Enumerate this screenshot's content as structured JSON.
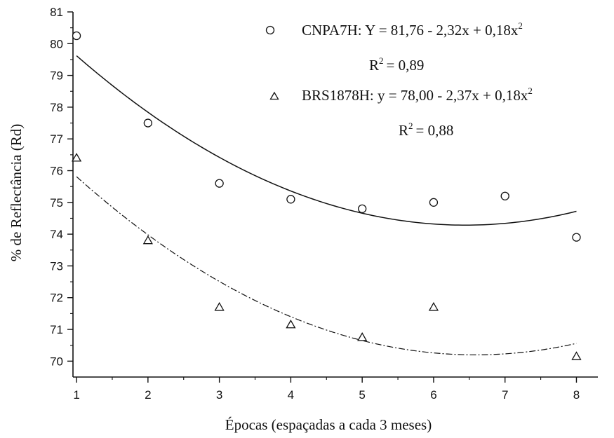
{
  "chart_data": {
    "type": "scatter",
    "xlabel": "Épocas (espaçadas a cada 3 meses)",
    "ylabel": "% de Reflectância (Rd)",
    "xlim": [
      0.95,
      8.3
    ],
    "ylim": [
      69.5,
      81
    ],
    "x_ticks": [
      1,
      2,
      3,
      4,
      5,
      6,
      7,
      8
    ],
    "y_ticks": [
      70,
      71,
      72,
      73,
      74,
      75,
      76,
      77,
      78,
      79,
      80,
      81
    ],
    "grid": false,
    "legend_position": "top-right",
    "series": [
      {
        "name": "CNPA7H",
        "marker": "circle",
        "line_style": "solid",
        "equation": "Y = 81,76 - 2,32x + 0,18x",
        "equation_exponent": "2",
        "r2_label": "R",
        "r2_exponent": "2",
        "r2_value": "= 0,89",
        "coefficients": [
          81.76,
          -2.32,
          0.18
        ],
        "points": [
          [
            1,
            80.25
          ],
          [
            2,
            77.5
          ],
          [
            3,
            75.6
          ],
          [
            4,
            75.1
          ],
          [
            5,
            74.8
          ],
          [
            6,
            75.0
          ],
          [
            7,
            75.2
          ],
          [
            8,
            73.9
          ]
        ]
      },
      {
        "name": "BRS1878H",
        "marker": "triangle",
        "line_style": "dash-dot",
        "equation": "y = 78,00 - 2,37x + 0,18x",
        "equation_exponent": "2",
        "r2_label": "R",
        "r2_exponent": "2",
        "r2_value": "= 0,88",
        "coefficients": [
          78.0,
          -2.37,
          0.18
        ],
        "points": [
          [
            1,
            76.4
          ],
          [
            2,
            73.8
          ],
          [
            3,
            71.7
          ],
          [
            4,
            71.15
          ],
          [
            5,
            70.75
          ],
          [
            6,
            71.7
          ],
          [
            8,
            70.15
          ]
        ]
      }
    ]
  }
}
